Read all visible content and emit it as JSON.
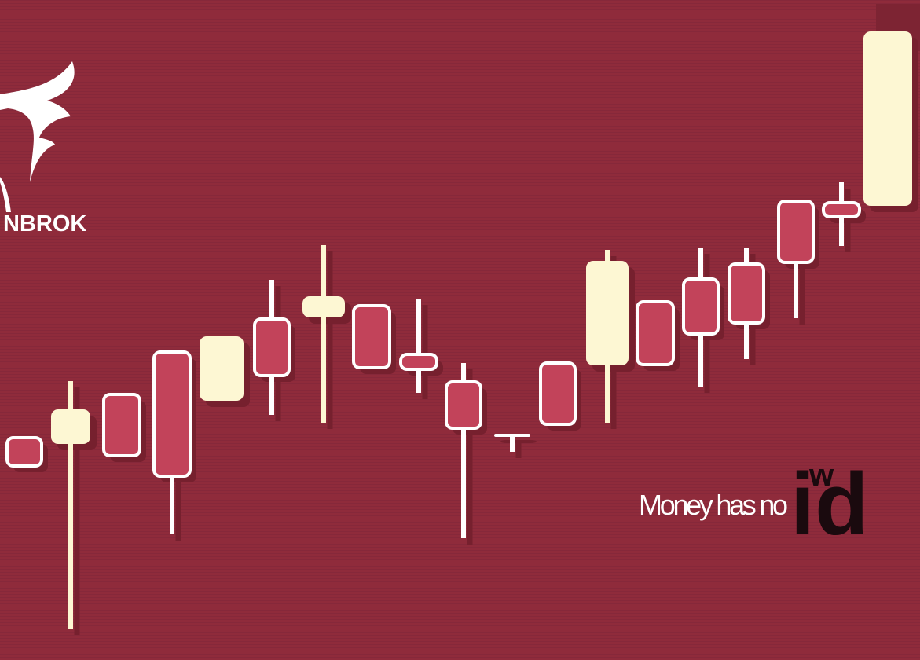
{
  "logo": {
    "text": "NBROK"
  },
  "slogan": {
    "lead": "Money has no",
    "emphasis": "id",
    "raised": "w"
  }
}
